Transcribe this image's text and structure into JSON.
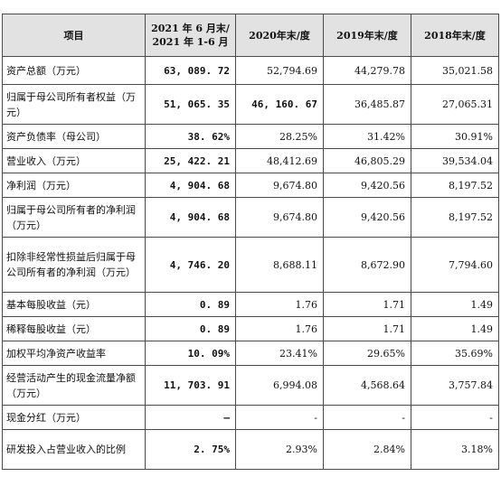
{
  "table": {
    "headers": [
      "项目",
      "2021 年 6 月末/\n2021 年 1-6 月",
      "2020年末/度",
      "2019年末/度",
      "2018年末/度"
    ],
    "rows": [
      {
        "item": "资产总额（万元）",
        "values": [
          "63, 089. 72",
          "52,794.69",
          "44,279.78",
          "35,021.58"
        ]
      },
      {
        "item": "归属于母公司所有者权益（万元）",
        "values": [
          "51, 065. 35",
          "46, 160. 67",
          "36,485.87",
          "27,065.31"
        ]
      },
      {
        "item": "资产负债率（母公司）",
        "values": [
          "38. 62%",
          "28.25%",
          "31.42%",
          "30.91%"
        ]
      },
      {
        "item": "营业收入（万元）",
        "values": [
          "25, 422. 21",
          "48,412.69",
          "46,805.29",
          "39,534.04"
        ]
      },
      {
        "item": "净利润（万元）",
        "values": [
          "4, 904. 68",
          "9,674.80",
          "9,420.56",
          "8,197.52"
        ]
      },
      {
        "item": "归属于母公司所有者的净利润（万元）",
        "values": [
          "4, 904. 68",
          "9,674.80",
          "9,420.56",
          "8,197.52"
        ]
      },
      {
        "item": "扣除非经常性损益后归属于母公司所有者的净利润（万元）",
        "values": [
          "4, 746. 20",
          "8,688.11",
          "8,672.90",
          "7,794.60"
        ]
      },
      {
        "item": "基本每股收益（元）",
        "values": [
          "0. 89",
          "1.76",
          "1.71",
          "1.49"
        ]
      },
      {
        "item": "稀释每股收益（元）",
        "values": [
          "0. 89",
          "1.76",
          "1.71",
          "1.49"
        ]
      },
      {
        "item": "加权平均净资产收益率",
        "values": [
          "10. 09%",
          "23.41%",
          "29.65%",
          "35.69%"
        ]
      },
      {
        "item": "经营活动产生的现金流量净额（万元）",
        "values": [
          "11, 703. 91",
          "6,994.08",
          "4,568.64",
          "3,757.84"
        ]
      },
      {
        "item": "现金分红（万元）",
        "values": [
          "–",
          "-",
          "-",
          "-"
        ]
      },
      {
        "item": "研发投入占营业收入的比例",
        "values": [
          "2. 75%",
          "2.93%",
          "2.84%",
          "3.18%"
        ]
      }
    ]
  }
}
